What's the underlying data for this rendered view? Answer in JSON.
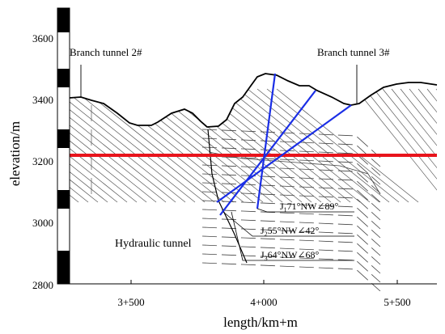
{
  "axes": {
    "xlabel": "length/km+m",
    "ylabel": "elevation/m",
    "x_ticks": [
      "3+500",
      "4+000",
      "5+500"
    ],
    "y_ticks": [
      "3600",
      "3400",
      "3200",
      "3000",
      "2800"
    ]
  },
  "labels": {
    "branch2": "Branch tunnel 2#",
    "branch3": "Branch tunnel 3#",
    "hydraulic": "Hydraulic tunnel"
  },
  "joints": [
    {
      "prefix": "J",
      "sub": "1",
      "text": "71°NW∠89°"
    },
    {
      "prefix": "J",
      "sub": "2",
      "text": "55°NW∠42°"
    },
    {
      "prefix": "J",
      "sub": "3",
      "text": "64°NW∠68°"
    }
  ],
  "colors": {
    "tunnel_line": "#e8141c",
    "joint_lines": "#1a2ee6",
    "outline": "#000000"
  },
  "tunnel_elevation": 3212
}
